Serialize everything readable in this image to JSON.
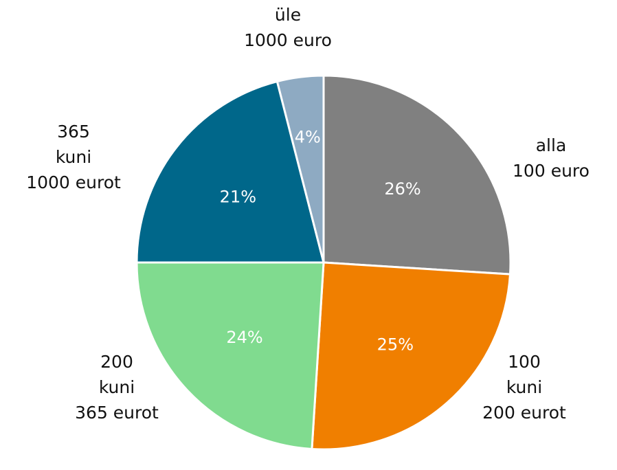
{
  "chart_data": {
    "type": "pie",
    "title": "",
    "start": "top",
    "direction": "clockwise",
    "slices": [
      {
        "label": [
          "alla",
          "100 euro"
        ],
        "value": 26,
        "value_label": "26%",
        "color": "#808080"
      },
      {
        "label": [
          "100",
          "kuni",
          "200 eurot"
        ],
        "value": 25,
        "value_label": "25%",
        "color": "#f07f00"
      },
      {
        "label": [
          "200",
          "kuni",
          "365 eurot"
        ],
        "value": 24,
        "value_label": "24%",
        "color": "#80db8f"
      },
      {
        "label": [
          "365",
          "kuni",
          "1000 eurot"
        ],
        "value": 21,
        "value_label": "21%",
        "color": "#00678a"
      },
      {
        "label": [
          "üle",
          "1000 euro"
        ],
        "value": 4,
        "value_label": "4%",
        "color": "#8eaac2"
      }
    ]
  }
}
